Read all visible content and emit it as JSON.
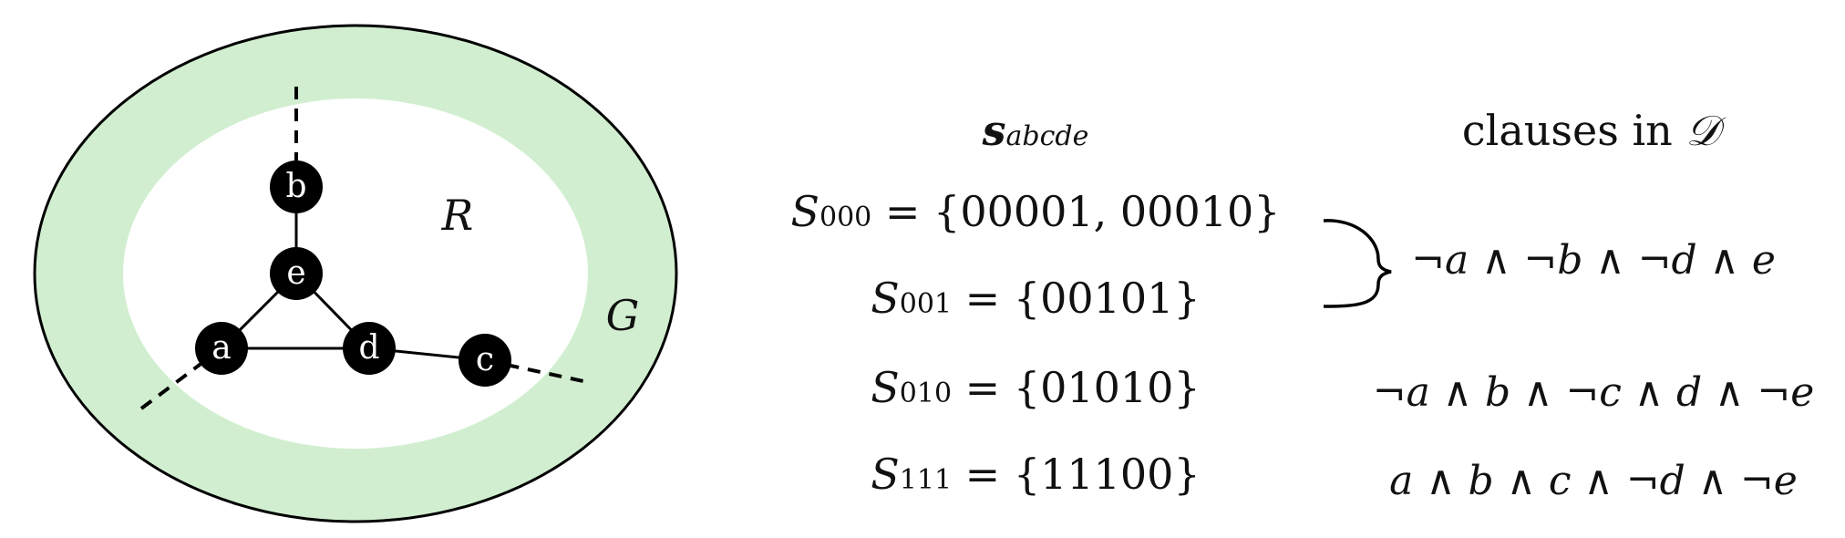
{
  "graph": {
    "outer_label": "G",
    "inner_label": "R",
    "colors": {
      "ring": "#d1efd0",
      "inner": "#ffffff",
      "node": "#000000",
      "node_text": "#ffffff",
      "stroke": "#000000"
    },
    "nodes": [
      {
        "id": "a",
        "label": "a"
      },
      {
        "id": "b",
        "label": "b"
      },
      {
        "id": "c",
        "label": "c"
      },
      {
        "id": "d",
        "label": "d"
      },
      {
        "id": "e",
        "label": "e"
      }
    ],
    "edges": [
      {
        "from": "b",
        "to": "e",
        "style": "solid"
      },
      {
        "from": "e",
        "to": "a",
        "style": "solid"
      },
      {
        "from": "e",
        "to": "d",
        "style": "solid"
      },
      {
        "from": "a",
        "to": "d",
        "style": "solid"
      },
      {
        "from": "d",
        "to": "c",
        "style": "solid"
      },
      {
        "from": "b",
        "to": "outside",
        "style": "dashed"
      },
      {
        "from": "a",
        "to": "outside",
        "style": "dashed"
      },
      {
        "from": "c",
        "to": "outside",
        "style": "dashed"
      }
    ]
  },
  "table": {
    "header_s": {
      "base": "s",
      "sub": "abcde"
    },
    "header_clauses": {
      "text": "clauses in",
      "symbol": "𝒟"
    },
    "rows": [
      {
        "sym": "S",
        "sub": "000",
        "eq": " = {00001, 00010}"
      },
      {
        "sym": "S",
        "sub": "001",
        "eq": " = {00101}"
      },
      {
        "sym": "S",
        "sub": "010",
        "eq": " = {01010}"
      },
      {
        "sym": "S",
        "sub": "111",
        "eq": " = {11100}"
      }
    ],
    "clauses": [
      "¬a ∧ ¬b ∧ ¬d ∧ e",
      "¬a ∧ b ∧ ¬c ∧ d ∧ ¬e",
      "a ∧ b ∧ c ∧ ¬d ∧ ¬e"
    ]
  }
}
